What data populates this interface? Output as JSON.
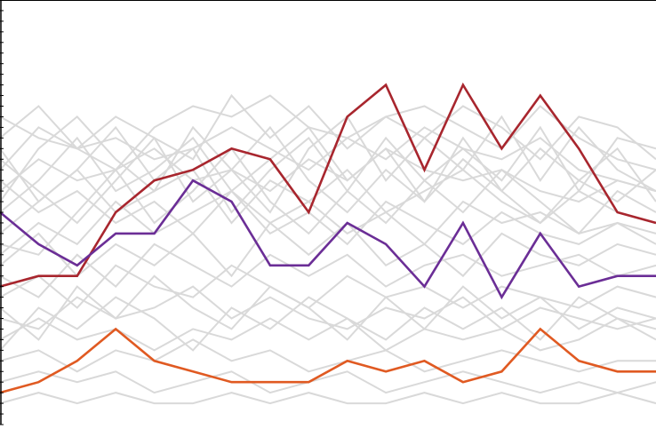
{
  "chart_data": {
    "type": "line",
    "title": "",
    "xlabel": "",
    "ylabel": "",
    "x": [
      1,
      2,
      3,
      4,
      5,
      6,
      7,
      8,
      9,
      10,
      11,
      12,
      13,
      14,
      15,
      16,
      17,
      18
    ],
    "xlim": [
      1,
      18
    ],
    "ylim": [
      0,
      40
    ],
    "grid": false,
    "legend": "none",
    "colors": {
      "background": "#ffffff",
      "axis": "#000000",
      "context": "#d9d9d9",
      "highlight_red": "#a8262e",
      "highlight_purple": "#6b2e96",
      "highlight_orange": "#e05a22"
    },
    "highlighted_series": [
      {
        "color": "#a8262e",
        "values": [
          13,
          14,
          14,
          20,
          23,
          24,
          26,
          25,
          20,
          29,
          32,
          24,
          32,
          26,
          31,
          26,
          20,
          19
        ]
      },
      {
        "color": "#6b2e96",
        "values": [
          20,
          17,
          15,
          18,
          18,
          23,
          21,
          15,
          15,
          19,
          17,
          13,
          19,
          12,
          18,
          13,
          14,
          14
        ]
      },
      {
        "color": "#e05a22",
        "values": [
          3,
          4,
          6,
          9,
          6,
          5,
          4,
          4,
          4,
          6,
          5,
          6,
          4,
          5,
          9,
          6,
          5,
          5
        ]
      }
    ],
    "context_series": [
      {
        "values": [
          29,
          27,
          26,
          24,
          28,
          30,
          29,
          31,
          28,
          27,
          29,
          30,
          28,
          26,
          30,
          27,
          25,
          24
        ]
      },
      {
        "values": [
          24,
          28,
          26,
          27,
          25,
          26,
          28,
          26,
          24,
          27,
          25,
          28,
          26,
          25,
          27,
          24,
          23,
          22
        ]
      },
      {
        "values": [
          22,
          25,
          23,
          24,
          26,
          23,
          24,
          22,
          25,
          23,
          26,
          24,
          23,
          24,
          22,
          21,
          23,
          22
        ]
      },
      {
        "values": [
          18,
          21,
          24,
          20,
          22,
          24,
          19,
          23,
          21,
          24,
          20,
          22,
          24,
          21,
          19,
          22,
          20,
          19
        ]
      },
      {
        "values": [
          16,
          19,
          17,
          21,
          18,
          20,
          22,
          18,
          20,
          17,
          21,
          19,
          17,
          20,
          18,
          17,
          19,
          18
        ]
      },
      {
        "values": [
          14,
          12,
          16,
          13,
          17,
          15,
          13,
          16,
          14,
          16,
          13,
          15,
          16,
          14,
          15,
          16,
          14,
          15
        ]
      },
      {
        "values": [
          12,
          14,
          11,
          15,
          13,
          12,
          15,
          13,
          11,
          14,
          12,
          13,
          11,
          13,
          12,
          11,
          13,
          12
        ]
      },
      {
        "values": [
          10,
          9,
          12,
          10,
          11,
          13,
          10,
          12,
          10,
          9,
          11,
          10,
          12,
          9,
          11,
          10,
          9,
          10
        ]
      },
      {
        "values": [
          8,
          10,
          8,
          9,
          7,
          9,
          8,
          10,
          8,
          10,
          7,
          9,
          8,
          9,
          7,
          8,
          10,
          9
        ]
      },
      {
        "values": [
          6,
          7,
          5,
          7,
          6,
          8,
          6,
          7,
          5,
          6,
          7,
          5,
          6,
          7,
          6,
          5,
          6,
          6
        ]
      },
      {
        "values": [
          4,
          5,
          4,
          5,
          3,
          4,
          5,
          3,
          4,
          5,
          3,
          4,
          5,
          4,
          3,
          4,
          3,
          4
        ]
      },
      {
        "values": [
          2,
          3,
          2,
          3,
          2,
          2,
          3,
          2,
          3,
          2,
          2,
          3,
          2,
          3,
          2,
          2,
          3,
          2
        ]
      },
      {
        "values": [
          27,
          30,
          26,
          29,
          27,
          25,
          31,
          27,
          30,
          26,
          29,
          27,
          30,
          28,
          25,
          29,
          28,
          25
        ]
      },
      {
        "values": [
          20,
          23,
          27,
          22,
          24,
          27,
          22,
          25,
          28,
          23,
          26,
          21,
          25,
          22,
          26,
          23,
          21,
          24
        ]
      },
      {
        "values": [
          17,
          16,
          20,
          24,
          19,
          22,
          26,
          21,
          18,
          22,
          19,
          23,
          20,
          24,
          21,
          18,
          22,
          20
        ]
      },
      {
        "values": [
          25,
          22,
          19,
          23,
          27,
          21,
          24,
          28,
          23,
          20,
          24,
          21,
          27,
          22,
          19,
          23,
          26,
          21
        ]
      },
      {
        "values": [
          15,
          18,
          14,
          17,
          15,
          18,
          14,
          19,
          16,
          19,
          15,
          17,
          14,
          18,
          16,
          15,
          17,
          16
        ]
      },
      {
        "values": [
          11,
          8,
          13,
          10,
          14,
          11,
          9,
          13,
          11,
          8,
          12,
          9,
          13,
          10,
          12,
          9,
          11,
          10
        ]
      },
      {
        "values": [
          21,
          26,
          29,
          25,
          22,
          28,
          24,
          20,
          26,
          29,
          23,
          27,
          24,
          29,
          23,
          28,
          24,
          22
        ]
      },
      {
        "values": [
          7,
          11,
          9,
          12,
          10,
          7,
          11,
          9,
          12,
          10,
          8,
          11,
          9,
          11,
          8,
          12,
          10,
          8
        ]
      },
      {
        "values": [
          26,
          21,
          24,
          28,
          23,
          26,
          20,
          24,
          27,
          22,
          27,
          23,
          26,
          23,
          28,
          22,
          27,
          26
        ]
      },
      {
        "values": [
          23,
          20,
          22,
          19,
          21,
          18,
          22,
          19,
          21,
          18,
          20,
          17,
          21,
          19,
          20,
          18,
          19,
          17
        ]
      }
    ]
  }
}
